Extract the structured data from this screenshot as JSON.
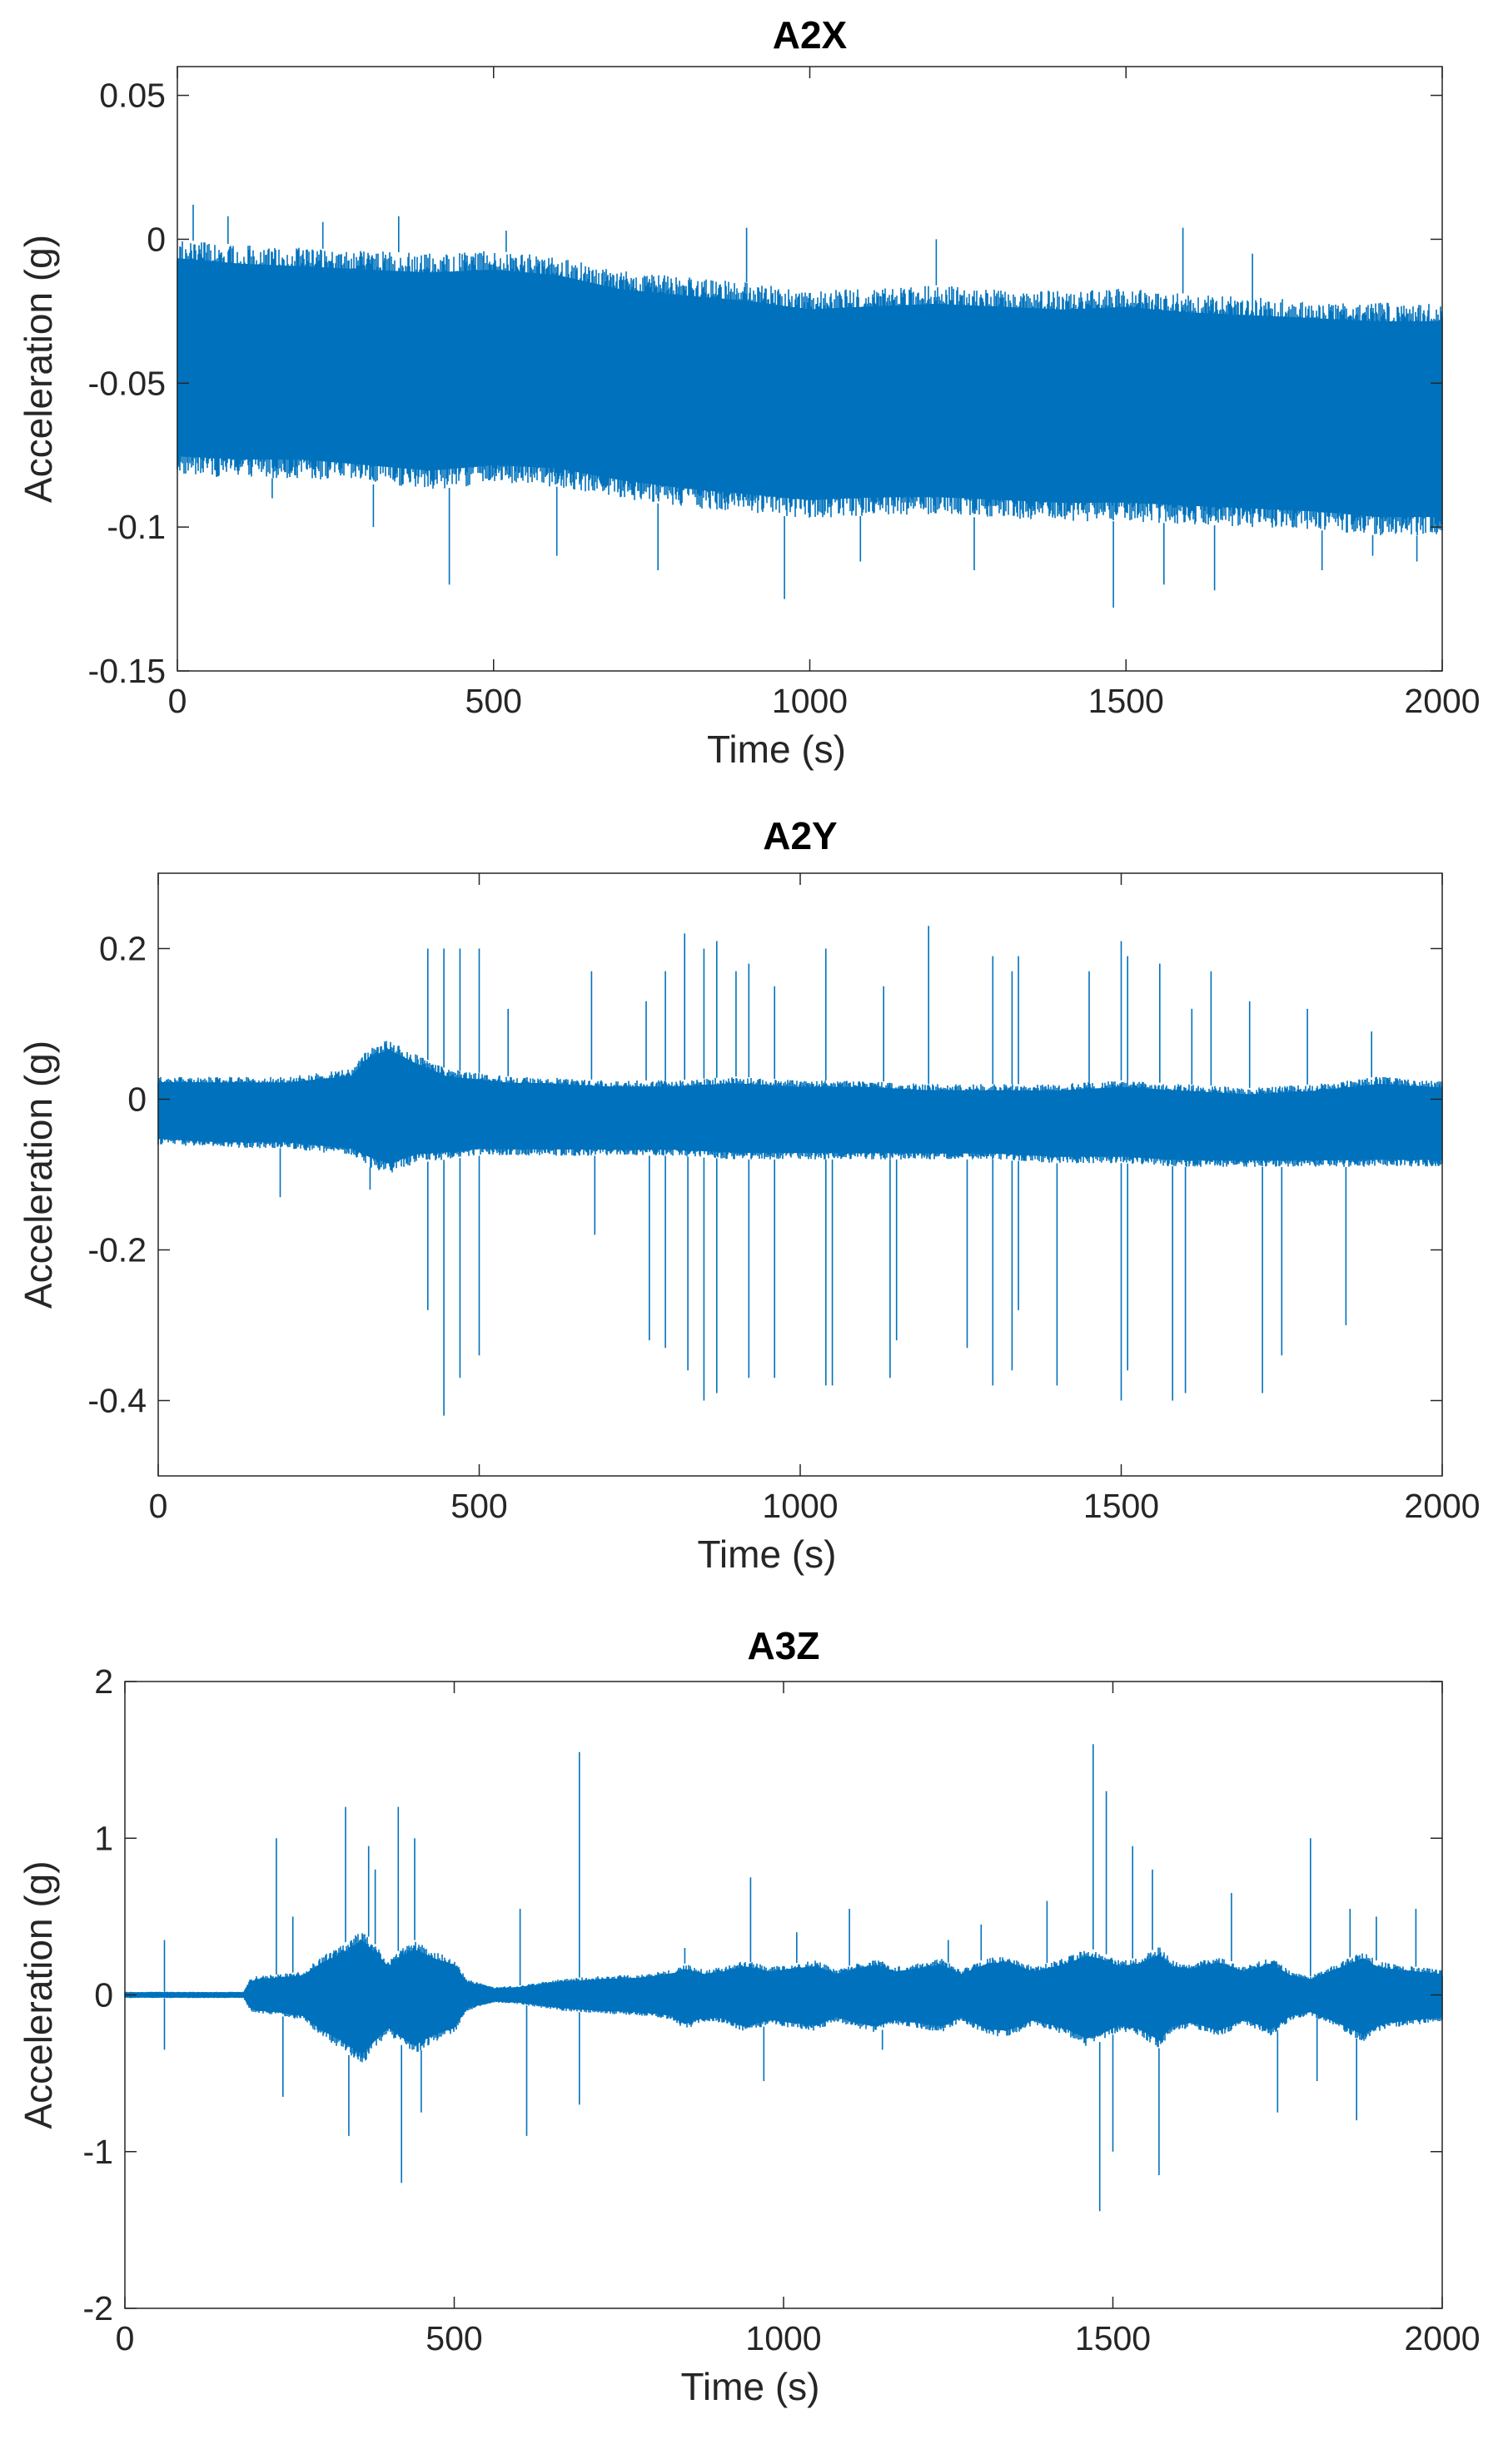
{
  "style": {
    "series_color": "#0072BD",
    "axis_color": "#262626",
    "background": "#ffffff"
  },
  "chart_data": [
    {
      "type": "line",
      "title": "A2X",
      "xlabel": "Time (s)",
      "ylabel": "Acceleration (g)",
      "xlim": [
        0,
        2000
      ],
      "ylim": [
        -0.15,
        0.06
      ],
      "xticks": [
        0,
        500,
        1000,
        1500,
        2000
      ],
      "xtick_labels": [
        "0",
        "500",
        "1000",
        "1500",
        "2000"
      ],
      "yticks": [
        0.05,
        0,
        -0.05,
        -0.1,
        -0.15
      ],
      "ytick_labels": [
        "0.05",
        "0",
        "-0.05",
        "-0.1",
        "-0.15"
      ],
      "grid": false,
      "series": [
        {
          "envelope": {
            "x": [
              0,
              100,
              200,
              300,
              400,
              500,
              600,
              700,
              800,
              900,
              1000,
              1100,
              1200,
              1300,
              1400,
              1500,
              1600,
              1700,
              1800,
              1900,
              2000
            ],
            "upper": [
              0.0,
              -0.002,
              -0.003,
              -0.004,
              -0.005,
              -0.004,
              -0.006,
              -0.011,
              -0.013,
              -0.015,
              -0.018,
              -0.017,
              -0.016,
              -0.017,
              -0.018,
              -0.017,
              -0.019,
              -0.02,
              -0.021,
              -0.022,
              -0.022
            ],
            "lower": [
              -0.082,
              -0.083,
              -0.083,
              -0.085,
              -0.087,
              -0.085,
              -0.086,
              -0.09,
              -0.093,
              -0.095,
              -0.097,
              -0.096,
              -0.096,
              -0.097,
              -0.098,
              -0.098,
              -0.099,
              -0.1,
              -0.101,
              -0.103,
              -0.103
            ]
          },
          "spikes": [
            {
              "x": 25,
              "y": 0.012
            },
            {
              "x": 80,
              "y": 0.008
            },
            {
              "x": 150,
              "y": -0.09
            },
            {
              "x": 230,
              "y": 0.006
            },
            {
              "x": 310,
              "y": -0.1
            },
            {
              "x": 350,
              "y": 0.008
            },
            {
              "x": 430,
              "y": -0.12
            },
            {
              "x": 520,
              "y": 0.003
            },
            {
              "x": 600,
              "y": -0.11
            },
            {
              "x": 760,
              "y": -0.115
            },
            {
              "x": 900,
              "y": 0.004
            },
            {
              "x": 960,
              "y": -0.125
            },
            {
              "x": 1080,
              "y": -0.112
            },
            {
              "x": 1200,
              "y": 0.0
            },
            {
              "x": 1260,
              "y": -0.115
            },
            {
              "x": 1480,
              "y": -0.128
            },
            {
              "x": 1560,
              "y": -0.12
            },
            {
              "x": 1590,
              "y": 0.004
            },
            {
              "x": 1640,
              "y": -0.122
            },
            {
              "x": 1700,
              "y": -0.005
            },
            {
              "x": 1810,
              "y": -0.115
            },
            {
              "x": 1890,
              "y": -0.11
            },
            {
              "x": 1960,
              "y": -0.112
            }
          ]
        }
      ]
    },
    {
      "type": "line",
      "title": "A2Y",
      "xlabel": "Time (s)",
      "ylabel": "Acceleration (g)",
      "xlim": [
        0,
        2000
      ],
      "ylim": [
        -0.5,
        0.3
      ],
      "xticks": [
        0,
        500,
        1000,
        1500,
        2000
      ],
      "xtick_labels": [
        "0",
        "500",
        "1000",
        "1500",
        "2000"
      ],
      "yticks": [
        0.2,
        0,
        -0.2,
        -0.4
      ],
      "ytick_labels": [
        "0.2",
        "0",
        "-0.2",
        "-0.4"
      ],
      "grid": false,
      "series": [
        {
          "envelope": {
            "x": [
              0,
              100,
              200,
              300,
              330,
              360,
              400,
              450,
              500,
              550,
              600,
              700,
              800,
              900,
              1000,
              1100,
              1200,
              1300,
              1400,
              1500,
              1600,
              1700,
              1800,
              1900,
              2000
            ],
            "upper": [
              0.03,
              0.03,
              0.03,
              0.04,
              0.07,
              0.08,
              0.06,
              0.04,
              0.035,
              0.03,
              0.03,
              0.025,
              0.025,
              0.03,
              0.025,
              0.025,
              0.02,
              0.02,
              0.02,
              0.025,
              0.02,
              0.015,
              0.02,
              0.03,
              0.025
            ],
            "lower": [
              -0.06,
              -0.065,
              -0.065,
              -0.075,
              -0.09,
              -0.1,
              -0.085,
              -0.08,
              -0.075,
              -0.075,
              -0.075,
              -0.075,
              -0.075,
              -0.08,
              -0.08,
              -0.08,
              -0.08,
              -0.08,
              -0.085,
              -0.085,
              -0.09,
              -0.09,
              -0.09,
              -0.09,
              -0.09
            ]
          },
          "spikes": [
            {
              "x": 190,
              "y": -0.13
            },
            {
              "x": 330,
              "y": -0.12
            },
            {
              "x": 420,
              "y": 0.2
            },
            {
              "x": 420,
              "y": -0.28
            },
            {
              "x": 445,
              "y": 0.2
            },
            {
              "x": 445,
              "y": -0.42
            },
            {
              "x": 470,
              "y": 0.2
            },
            {
              "x": 470,
              "y": -0.37
            },
            {
              "x": 500,
              "y": 0.2
            },
            {
              "x": 500,
              "y": -0.34
            },
            {
              "x": 545,
              "y": 0.12
            },
            {
              "x": 675,
              "y": 0.17
            },
            {
              "x": 680,
              "y": -0.18
            },
            {
              "x": 760,
              "y": 0.13
            },
            {
              "x": 765,
              "y": -0.32
            },
            {
              "x": 790,
              "y": 0.17
            },
            {
              "x": 790,
              "y": -0.33
            },
            {
              "x": 820,
              "y": 0.22
            },
            {
              "x": 825,
              "y": -0.36
            },
            {
              "x": 850,
              "y": 0.2
            },
            {
              "x": 850,
              "y": -0.4
            },
            {
              "x": 870,
              "y": 0.21
            },
            {
              "x": 870,
              "y": -0.39
            },
            {
              "x": 900,
              "y": 0.17
            },
            {
              "x": 920,
              "y": 0.18
            },
            {
              "x": 920,
              "y": -0.37
            },
            {
              "x": 960,
              "y": 0.15
            },
            {
              "x": 960,
              "y": -0.37
            },
            {
              "x": 1040,
              "y": 0.2
            },
            {
              "x": 1040,
              "y": -0.38
            },
            {
              "x": 1050,
              "y": -0.38
            },
            {
              "x": 1130,
              "y": 0.15
            },
            {
              "x": 1140,
              "y": -0.37
            },
            {
              "x": 1150,
              "y": -0.32
            },
            {
              "x": 1200,
              "y": 0.23
            },
            {
              "x": 1260,
              "y": -0.33
            },
            {
              "x": 1300,
              "y": 0.19
            },
            {
              "x": 1300,
              "y": -0.38
            },
            {
              "x": 1330,
              "y": 0.17
            },
            {
              "x": 1330,
              "y": -0.36
            },
            {
              "x": 1340,
              "y": 0.19
            },
            {
              "x": 1340,
              "y": -0.28
            },
            {
              "x": 1400,
              "y": -0.38
            },
            {
              "x": 1450,
              "y": 0.17
            },
            {
              "x": 1500,
              "y": 0.21
            },
            {
              "x": 1500,
              "y": -0.4
            },
            {
              "x": 1510,
              "y": 0.19
            },
            {
              "x": 1510,
              "y": -0.36
            },
            {
              "x": 1560,
              "y": 0.18
            },
            {
              "x": 1580,
              "y": -0.4
            },
            {
              "x": 1600,
              "y": -0.39
            },
            {
              "x": 1610,
              "y": 0.12
            },
            {
              "x": 1640,
              "y": 0.17
            },
            {
              "x": 1700,
              "y": 0.13
            },
            {
              "x": 1720,
              "y": -0.39
            },
            {
              "x": 1750,
              "y": -0.34
            },
            {
              "x": 1790,
              "y": 0.12
            },
            {
              "x": 1850,
              "y": -0.3
            },
            {
              "x": 1890,
              "y": 0.09
            }
          ]
        }
      ]
    },
    {
      "type": "line",
      "title": "A3Z",
      "xlabel": "Time (s)",
      "ylabel": "Acceleration (g)",
      "xlim": [
        0,
        2000
      ],
      "ylim": [
        -2,
        2
      ],
      "xticks": [
        0,
        500,
        1000,
        1500,
        2000
      ],
      "xtick_labels": [
        "0",
        "500",
        "1000",
        "1500",
        "2000"
      ],
      "yticks": [
        2,
        1,
        0,
        -1,
        -2
      ],
      "ytick_labels": [
        "2",
        "1",
        "0",
        "-1",
        "-2"
      ],
      "grid": false,
      "series": [
        {
          "envelope": {
            "x": [
              0,
              180,
              190,
              200,
              230,
              270,
              300,
              330,
              360,
              385,
              400,
              420,
              440,
              470,
              500,
              520,
              560,
              600,
              660,
              720,
              780,
              830,
              850,
              880,
              910,
              940,
              980,
              1010,
              1050,
              1080,
              1110,
              1140,
              1170,
              1200,
              1240,
              1270,
              1310,
              1340,
              1380,
              1430,
              1460,
              1480,
              1510,
              1540,
              1570,
              1590,
              1620,
              1660,
              1700,
              1740,
              1770,
              1800,
              1840,
              1880,
              1900,
              1920,
              2000
            ],
            "upper": [
              0.02,
              0.02,
              0.1,
              0.12,
              0.13,
              0.15,
              0.25,
              0.32,
              0.42,
              0.3,
              0.22,
              0.3,
              0.35,
              0.28,
              0.23,
              0.1,
              0.05,
              0.06,
              0.1,
              0.12,
              0.13,
              0.16,
              0.2,
              0.16,
              0.18,
              0.22,
              0.18,
              0.2,
              0.22,
              0.16,
              0.2,
              0.23,
              0.18,
              0.2,
              0.23,
              0.16,
              0.24,
              0.25,
              0.18,
              0.24,
              0.3,
              0.28,
              0.22,
              0.24,
              0.31,
              0.22,
              0.2,
              0.25,
              0.18,
              0.24,
              0.15,
              0.12,
              0.2,
              0.28,
              0.22,
              0.2,
              0.16
            ],
            "lower": [
              -0.02,
              -0.02,
              -0.1,
              -0.12,
              -0.13,
              -0.16,
              -0.27,
              -0.35,
              -0.45,
              -0.32,
              -0.25,
              -0.32,
              -0.38,
              -0.3,
              -0.25,
              -0.1,
              -0.05,
              -0.06,
              -0.1,
              -0.12,
              -0.13,
              -0.16,
              -0.22,
              -0.17,
              -0.18,
              -0.24,
              -0.19,
              -0.21,
              -0.23,
              -0.17,
              -0.21,
              -0.24,
              -0.19,
              -0.21,
              -0.24,
              -0.17,
              -0.26,
              -0.27,
              -0.19,
              -0.26,
              -0.33,
              -0.3,
              -0.23,
              -0.26,
              -0.34,
              -0.24,
              -0.21,
              -0.27,
              -0.19,
              -0.26,
              -0.16,
              -0.13,
              -0.21,
              -0.3,
              -0.24,
              -0.21,
              -0.17
            ]
          },
          "spikes": [
            {
              "x": 60,
              "y": 0.35
            },
            {
              "x": 60,
              "y": -0.35
            },
            {
              "x": 230,
              "y": 1.0
            },
            {
              "x": 240,
              "y": -0.65
            },
            {
              "x": 255,
              "y": 0.5
            },
            {
              "x": 335,
              "y": 1.2
            },
            {
              "x": 340,
              "y": -0.9
            },
            {
              "x": 370,
              "y": 0.95
            },
            {
              "x": 380,
              "y": 0.8
            },
            {
              "x": 415,
              "y": 1.2
            },
            {
              "x": 420,
              "y": -1.2
            },
            {
              "x": 440,
              "y": 1.0
            },
            {
              "x": 450,
              "y": -0.75
            },
            {
              "x": 600,
              "y": 0.55
            },
            {
              "x": 610,
              "y": -0.9
            },
            {
              "x": 690,
              "y": 1.55
            },
            {
              "x": 690,
              "y": -0.7
            },
            {
              "x": 850,
              "y": 0.3
            },
            {
              "x": 950,
              "y": 0.75
            },
            {
              "x": 970,
              "y": -0.55
            },
            {
              "x": 1020,
              "y": 0.4
            },
            {
              "x": 1100,
              "y": 0.55
            },
            {
              "x": 1150,
              "y": -0.35
            },
            {
              "x": 1250,
              "y": 0.35
            },
            {
              "x": 1300,
              "y": 0.45
            },
            {
              "x": 1400,
              "y": 0.6
            },
            {
              "x": 1470,
              "y": 1.6
            },
            {
              "x": 1480,
              "y": -1.38
            },
            {
              "x": 1490,
              "y": 1.3
            },
            {
              "x": 1500,
              "y": -1.0
            },
            {
              "x": 1530,
              "y": 0.95
            },
            {
              "x": 1560,
              "y": 0.8
            },
            {
              "x": 1570,
              "y": -1.15
            },
            {
              "x": 1680,
              "y": 0.65
            },
            {
              "x": 1750,
              "y": -0.75
            },
            {
              "x": 1800,
              "y": 1.0
            },
            {
              "x": 1810,
              "y": -0.55
            },
            {
              "x": 1860,
              "y": 0.55
            },
            {
              "x": 1870,
              "y": -0.8
            },
            {
              "x": 1900,
              "y": 0.5
            },
            {
              "x": 1960,
              "y": 0.55
            }
          ]
        }
      ]
    }
  ]
}
